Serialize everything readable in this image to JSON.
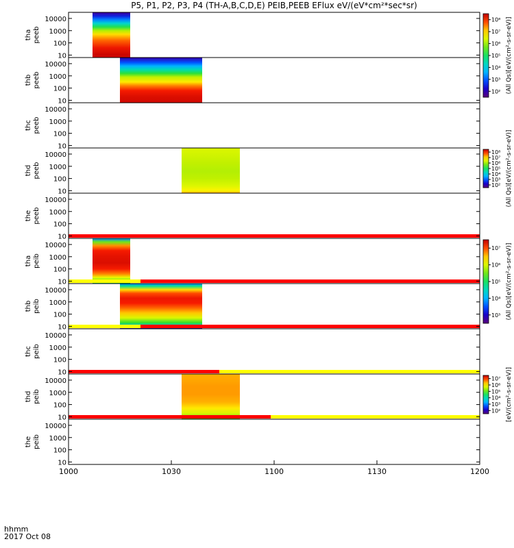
{
  "chart_data": {
    "type": "heatmap",
    "title": "P5, P1, P2, P3, P4 (TH-A,B,C,D,E) PEIB,PEEB EFlux eV/(eV*cm²*sec*sr)",
    "x_axis": {
      "range_minutes": [
        0,
        120
      ],
      "ticks": [
        {
          "min": 0,
          "label": "1000"
        },
        {
          "min": 30,
          "label": "1030"
        },
        {
          "min": 60,
          "label": "1100"
        },
        {
          "min": 90,
          "label": "1130"
        },
        {
          "min": 120,
          "label": "1200"
        }
      ],
      "format_label": "hhmm",
      "date_label": "2017 Oct 08"
    },
    "y_ticks": [
      "10000",
      "1000",
      "100",
      "10"
    ],
    "y_range_log10": [
      0.8,
      4.5
    ],
    "panels": [
      {
        "probe": "tha",
        "instrument": "peeb",
        "data": [
          {
            "start": 7,
            "end": 18,
            "profile": "e_a"
          }
        ],
        "colorbar": "cb1",
        "flag": null
      },
      {
        "probe": "thb",
        "instrument": "peeb",
        "data": [
          {
            "start": 15,
            "end": 39,
            "profile": "e_b"
          }
        ],
        "colorbar": "cb1",
        "flag": null
      },
      {
        "probe": "thc",
        "instrument": "peeb",
        "data": [],
        "colorbar": null,
        "flag": null
      },
      {
        "probe": "thd",
        "instrument": "peeb",
        "data": [
          {
            "start": 33,
            "end": 50,
            "profile": "e_d"
          }
        ],
        "colorbar": "cb2",
        "flag": null
      },
      {
        "probe": "the",
        "instrument": "peeb",
        "data": [],
        "colorbar": null,
        "flag": [
          {
            "start": 0,
            "end": 120,
            "color": "red"
          }
        ]
      },
      {
        "probe": "tha",
        "instrument": "peib",
        "data": [
          {
            "start": 7,
            "end": 18,
            "profile": "i_a"
          }
        ],
        "colorbar": "cb3",
        "flag": [
          {
            "start": 0,
            "end": 21,
            "color": "yellow"
          },
          {
            "start": 21,
            "end": 120,
            "color": "red"
          }
        ]
      },
      {
        "probe": "thb",
        "instrument": "peib",
        "data": [
          {
            "start": 15,
            "end": 39,
            "profile": "i_b"
          }
        ],
        "colorbar": "cb3",
        "flag": [
          {
            "start": 0,
            "end": 21,
            "color": "yellow"
          },
          {
            "start": 21,
            "end": 120,
            "color": "red"
          }
        ]
      },
      {
        "probe": "thc",
        "instrument": "peib",
        "data": [],
        "colorbar": null,
        "flag": [
          {
            "start": 0,
            "end": 44,
            "color": "red"
          },
          {
            "start": 44,
            "end": 120,
            "color": "yellow"
          }
        ]
      },
      {
        "probe": "thd",
        "instrument": "peib",
        "data": [
          {
            "start": 33,
            "end": 50,
            "profile": "i_d"
          }
        ],
        "colorbar": "cb4",
        "flag": [
          {
            "start": 0,
            "end": 59,
            "color": "red"
          },
          {
            "start": 59,
            "end": 120,
            "color": "yellow"
          }
        ]
      },
      {
        "probe": "the",
        "instrument": "peib",
        "data": [],
        "colorbar": null,
        "flag": null
      }
    ],
    "profiles": {
      "e_a": [
        [
          0.8,
          0.97
        ],
        [
          1.0,
          0.99
        ],
        [
          1.6,
          0.95
        ],
        [
          2.2,
          0.88
        ],
        [
          2.7,
          0.78
        ],
        [
          3.0,
          0.65
        ],
        [
          3.3,
          0.52
        ],
        [
          3.6,
          0.38
        ],
        [
          3.9,
          0.25
        ],
        [
          4.2,
          0.14
        ],
        [
          4.5,
          0.04
        ]
      ],
      "e_b": [
        [
          0.8,
          0.98
        ],
        [
          1.3,
          0.97
        ],
        [
          1.8,
          0.94
        ],
        [
          2.2,
          0.86
        ],
        [
          2.5,
          0.77
        ],
        [
          2.9,
          0.66
        ],
        [
          3.2,
          0.54
        ],
        [
          3.5,
          0.42
        ],
        [
          3.8,
          0.3
        ],
        [
          4.1,
          0.2
        ],
        [
          4.5,
          0.06
        ]
      ],
      "e_d": [
        [
          0.8,
          0.82
        ],
        [
          1.0,
          0.76
        ],
        [
          1.4,
          0.7
        ],
        [
          2.0,
          0.66
        ],
        [
          2.6,
          0.65
        ],
        [
          3.2,
          0.66
        ],
        [
          3.8,
          0.68
        ],
        [
          4.5,
          0.7
        ]
      ],
      "i_a": [
        [
          0.8,
          0.48
        ],
        [
          1.0,
          0.58
        ],
        [
          1.3,
          0.72
        ],
        [
          1.6,
          0.86
        ],
        [
          2.0,
          0.94
        ],
        [
          2.5,
          0.97
        ],
        [
          3.0,
          0.96
        ],
        [
          3.5,
          0.94
        ],
        [
          3.9,
          0.85
        ],
        [
          4.2,
          0.6
        ],
        [
          4.5,
          0.25
        ]
      ],
      "i_b": [
        [
          0.8,
          0.08
        ],
        [
          1.0,
          0.3
        ],
        [
          1.3,
          0.55
        ],
        [
          1.7,
          0.7
        ],
        [
          2.1,
          0.8
        ],
        [
          2.5,
          0.88
        ],
        [
          2.9,
          0.94
        ],
        [
          3.3,
          0.95
        ],
        [
          3.7,
          0.9
        ],
        [
          4.0,
          0.78
        ],
        [
          4.3,
          0.45
        ],
        [
          4.5,
          0.25
        ]
      ],
      "i_d": [
        [
          0.8,
          0.55
        ],
        [
          1.0,
          0.62
        ],
        [
          1.3,
          0.7
        ],
        [
          1.7,
          0.77
        ],
        [
          2.2,
          0.82
        ],
        [
          2.8,
          0.84
        ],
        [
          3.5,
          0.84
        ],
        [
          4.0,
          0.83
        ],
        [
          4.5,
          0.82
        ]
      ]
    },
    "colorbars": [
      {
        "id": "cb1",
        "panels": [
          0,
          1
        ],
        "labels": [
          "10⁸",
          "10⁷",
          "10⁶",
          "10⁵",
          "10⁴",
          "10³",
          "10²"
        ],
        "title": "(All Qs)[eV/(cm²-s-sr-eV)]"
      },
      {
        "id": "cb2",
        "panels": [
          3
        ],
        "labels": [
          "10⁸",
          "10⁷",
          "10⁶",
          "10⁵",
          "10⁴",
          "10³",
          "10²"
        ],
        "title": "(All Qs)[eV/(cm²-s-sr-eV)]"
      },
      {
        "id": "cb3",
        "panels": [
          5,
          6
        ],
        "labels": [
          "10⁷",
          "10⁶",
          "10⁵",
          "10⁴",
          "10³"
        ],
        "title": "(All Qs)[eV/(cm²-s-sr-eV)]"
      },
      {
        "id": "cb4",
        "panels": [
          8
        ],
        "labels": [
          "10⁷",
          "10⁶",
          "10⁵",
          "10⁴",
          "10³",
          "10²"
        ],
        "title": "[eV/(cm²-s-sr-eV)]"
      }
    ]
  }
}
